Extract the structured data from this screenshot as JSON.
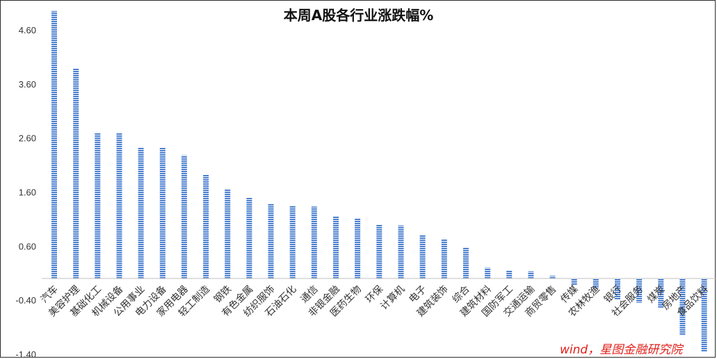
{
  "source_note": "wind，星图金融研究院",
  "colors": {
    "bar": "#4a7fd0",
    "axis": "#bfbfbf",
    "source": "#e0201b"
  },
  "chart_data": {
    "type": "bar",
    "title": "本周A股各行业涨跌幅%",
    "xlabel": "",
    "ylabel": "",
    "ylim": [
      -1.4,
      5.0
    ],
    "yticks": [
      "4.60",
      "3.60",
      "2.60",
      "1.60",
      "0.60",
      "-0.40",
      "-1.40"
    ],
    "ytick_values": [
      4.6,
      3.6,
      2.6,
      1.6,
      0.6,
      -0.4,
      -1.4
    ],
    "grid": false,
    "legend": "none",
    "categories": [
      "汽车",
      "美容护理",
      "基础化工",
      "机械设备",
      "公用事业",
      "电力设备",
      "家用电器",
      "轻工制造",
      "钢铁",
      "有色金属",
      "纺织服饰",
      "石油石化",
      "通信",
      "非银金融",
      "医药生物",
      "环保",
      "计算机",
      "电子",
      "建筑装饰",
      "综合",
      "建筑材料",
      "国防军工",
      "交通运输",
      "商贸零售",
      "传媒",
      "农林牧渔",
      "银行",
      "社会服务",
      "煤炭",
      "房地产",
      "食品饮料"
    ],
    "values": [
      4.95,
      3.88,
      2.7,
      2.7,
      2.43,
      2.42,
      2.28,
      1.92,
      1.65,
      1.5,
      1.38,
      1.35,
      1.33,
      1.15,
      1.12,
      1.0,
      0.98,
      0.8,
      0.73,
      0.58,
      0.2,
      0.15,
      0.13,
      0.05,
      -0.12,
      -0.18,
      -0.4,
      -0.45,
      -0.55,
      -1.05,
      -1.35
    ]
  }
}
